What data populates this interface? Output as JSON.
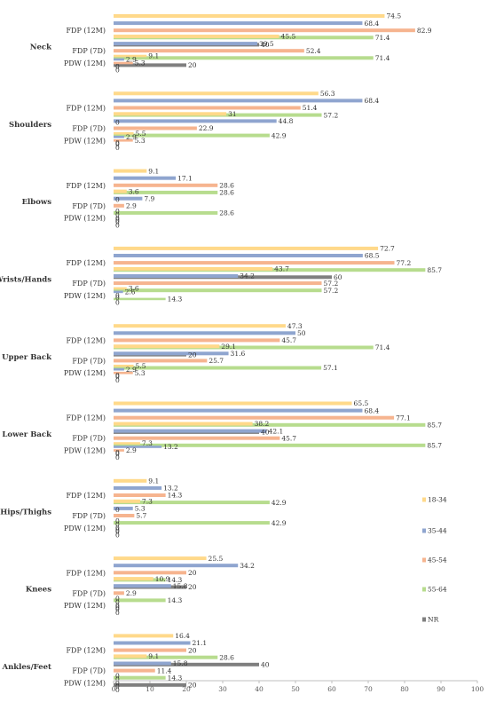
{
  "chart_data": {
    "type": "bar",
    "orientation": "horizontal",
    "xlim": [
      0,
      100
    ],
    "xticks": [
      0,
      10,
      20,
      30,
      40,
      50,
      60,
      70,
      80,
      90,
      100
    ],
    "grid": false,
    "legend_position": "right",
    "series": [
      {
        "name": "18-34",
        "color": "#FFD98A"
      },
      {
        "name": "35-44",
        "color": "#8FA5CF"
      },
      {
        "name": "45-54",
        "color": "#F6B48F"
      },
      {
        "name": "55-64",
        "color": "#B7DC8E"
      },
      {
        "name": "NR",
        "color": "#7F7F7F"
      }
    ],
    "groups": [
      {
        "name": "Neck",
        "subgroups": [
          {
            "label": "FDP (12M)",
            "values": [
              74.5,
              68.4,
              82.9,
              71.4,
              40
            ]
          },
          {
            "label": "FDP (7D)",
            "values": [
              45.5,
              39.5,
              52.4,
              71.4,
              20
            ]
          },
          {
            "label": "PDW (12M)",
            "values": [
              9.1,
              2.9,
              5.3,
              0,
              0
            ]
          }
        ]
      },
      {
        "name": "Shoulders",
        "subgroups": [
          {
            "label": "FDP (12M)",
            "values": [
              56.3,
              68.4,
              51.4,
              57.2,
              0
            ]
          },
          {
            "label": "FDP (7D)",
            "values": [
              31,
              44.8,
              22.9,
              42.9,
              0
            ]
          },
          {
            "label": "PDW (12M)",
            "values": [
              5.5,
              2.9,
              5.3,
              0,
              0
            ]
          }
        ]
      },
      {
        "name": "Elbows",
        "subgroups": [
          {
            "label": "FDP (12M)",
            "values": [
              9.1,
              17.1,
              28.6,
              28.6,
              0
            ]
          },
          {
            "label": "FDP (7D)",
            "values": [
              3.6,
              7.9,
              2.9,
              28.6,
              0
            ]
          },
          {
            "label": "PDW (12M)",
            "values": [
              0,
              0,
              0,
              0,
              0
            ]
          }
        ]
      },
      {
        "name": "Wrists/Hands",
        "subgroups": [
          {
            "label": "FDP (12M)",
            "values": [
              72.7,
              68.5,
              77.2,
              85.7,
              60
            ]
          },
          {
            "label": "FDP (7D)",
            "values": [
              43.7,
              34.2,
              57.2,
              57.2,
              0
            ]
          },
          {
            "label": "PDW (12M)",
            "values": [
              3.6,
              2.6,
              0,
              14.3,
              0
            ]
          }
        ]
      },
      {
        "name": "Upper Back",
        "subgroups": [
          {
            "label": "FDP (12M)",
            "values": [
              47.3,
              50,
              45.7,
              71.4,
              20
            ]
          },
          {
            "label": "FDP (7D)",
            "values": [
              29.1,
              31.6,
              25.7,
              57.1,
              0
            ]
          },
          {
            "label": "PDW (12M)",
            "values": [
              5.5,
              2.9,
              5.3,
              0,
              0
            ]
          }
        ]
      },
      {
        "name": "Lower Back",
        "subgroups": [
          {
            "label": "FDP (12M)",
            "values": [
              65.5,
              68.4,
              77.1,
              85.7,
              40
            ]
          },
          {
            "label": "FDP (7D)",
            "values": [
              38.2,
              42.1,
              45.7,
              85.7,
              0
            ]
          },
          {
            "label": "PDW (12M)",
            "values": [
              7.3,
              13.2,
              2.9,
              0,
              0
            ]
          }
        ]
      },
      {
        "name": "Hips/Thighs",
        "subgroups": [
          {
            "label": "FDP (12M)",
            "values": [
              9.1,
              13.2,
              14.3,
              42.9,
              0
            ]
          },
          {
            "label": "FDP (7D)",
            "values": [
              7.3,
              5.3,
              5.7,
              42.9,
              0
            ]
          },
          {
            "label": "PDW (12M)",
            "values": [
              0,
              0,
              0,
              0,
              0
            ]
          }
        ]
      },
      {
        "name": "Knees",
        "subgroups": [
          {
            "label": "FDP (12M)",
            "values": [
              25.5,
              34.2,
              20,
              14.3,
              20
            ]
          },
          {
            "label": "FDP (7D)",
            "values": [
              10.9,
              15.8,
              2.9,
              14.3,
              0
            ]
          },
          {
            "label": "PDW (12M)",
            "values": [
              0,
              0,
              0,
              0,
              0
            ]
          }
        ]
      },
      {
        "name": "Ankles/Feet",
        "subgroups": [
          {
            "label": "FDP (12M)",
            "values": [
              16.4,
              21.1,
              20,
              28.6,
              40
            ]
          },
          {
            "label": "FDP (7D)",
            "values": [
              9.1,
              15.8,
              11.4,
              14.3,
              20
            ]
          },
          {
            "label": "PDW (12M)",
            "values": [
              0,
              0,
              0,
              0,
              0
            ]
          }
        ]
      }
    ]
  }
}
